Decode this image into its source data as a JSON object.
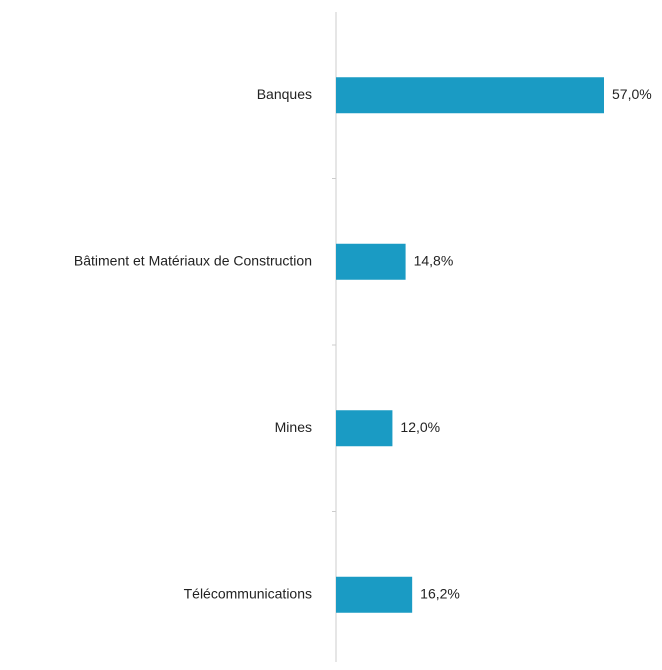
{
  "chart_data": {
    "type": "bar",
    "orientation": "horizontal",
    "categories": [
      "Banques",
      "Bâtiment et Matériaux de Construction",
      "Mines",
      "Télécommunications"
    ],
    "values": [
      57.0,
      14.8,
      12.0,
      16.2
    ],
    "value_labels": [
      "57,0%",
      "14,8%",
      "12,0%",
      "16,2%"
    ],
    "unit": "%",
    "xlim": [
      0,
      57.0
    ],
    "grid": false,
    "legend": "none",
    "bar_color": "#1a9bc4",
    "axis_color": "#cccccc",
    "text_color": "#222222"
  }
}
